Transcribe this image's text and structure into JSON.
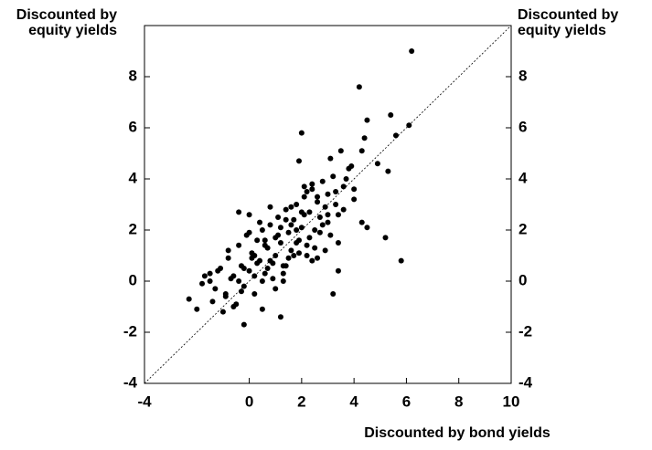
{
  "chart_data": {
    "type": "scatter",
    "ylabel": "Discounted by equity yields",
    "y2label": "Discounted by equity yields",
    "xlabel": "Discounted by bond yields",
    "color": "#000000",
    "xlim": [
      -4,
      10
    ],
    "xticks": [
      -4,
      0,
      2,
      4,
      6,
      8,
      10
    ],
    "ylim": [
      -4,
      10
    ],
    "yticks": [
      -4,
      -2,
      0,
      2,
      4,
      6,
      8
    ],
    "y2lim": [
      -4,
      10
    ],
    "y2ticks": [
      -4,
      -2,
      0,
      2,
      4,
      6,
      8
    ],
    "x": [
      6.2,
      4.2,
      5.4,
      5.6,
      6.1,
      4.5,
      4.9,
      5.3,
      5.8,
      5.2,
      4.5,
      4.3,
      2.0,
      1.9,
      -2.3,
      -2.0,
      -0.2,
      1.2,
      3.2,
      0.0,
      -0.4,
      4.4,
      3.5,
      -1.5,
      -1.3,
      -1.1,
      -0.9,
      -0.8,
      -0.6,
      -0.5,
      -0.4,
      -0.3,
      -0.2,
      -0.1,
      0.0,
      0.1,
      0.2,
      0.3,
      0.4,
      0.5,
      0.6,
      0.7,
      0.8,
      0.9,
      1.0,
      1.1,
      1.2,
      1.3,
      1.4,
      1.5,
      1.6,
      1.7,
      1.8,
      1.9,
      2.0,
      2.1,
      2.2,
      2.3,
      2.4,
      2.5,
      2.6,
      2.7,
      2.8,
      2.9,
      3.0,
      3.1,
      3.2,
      3.3,
      3.4,
      3.6,
      3.8,
      4.0,
      -1.7,
      -1.4,
      -1.0,
      -0.7,
      -0.3,
      0.1,
      0.4,
      0.7,
      1.0,
      1.3,
      1.6,
      1.9,
      2.2,
      2.5,
      2.8,
      3.1,
      3.4,
      3.7,
      4.0,
      4.3,
      -1.2,
      -0.8,
      -0.4,
      0.0,
      0.3,
      0.6,
      0.9,
      1.2,
      1.5,
      1.8,
      2.1,
      2.4,
      2.7,
      3.0,
      3.3,
      3.6,
      3.9,
      0.2,
      0.5,
      0.8,
      1.1,
      1.4,
      1.7,
      2.0,
      2.3,
      2.6,
      2.9,
      -0.6,
      -0.2,
      0.2,
      0.6,
      1.0,
      1.4,
      1.8,
      2.2,
      2.6,
      3.0,
      3.4,
      0.8,
      1.6,
      2.4,
      -1.8,
      -1.5,
      -0.9,
      0.5,
      1.3,
      2.1
    ],
    "values": [
      9.0,
      7.6,
      6.5,
      5.7,
      6.1,
      6.3,
      4.6,
      4.3,
      0.8,
      1.7,
      2.1,
      2.3,
      5.8,
      4.7,
      -0.7,
      -1.1,
      -1.7,
      -1.4,
      -0.5,
      2.6,
      2.7,
      5.6,
      5.1,
      0.0,
      -0.3,
      0.5,
      -0.6,
      0.9,
      0.2,
      -0.9,
      1.4,
      0.6,
      -0.2,
      1.8,
      0.4,
      1.1,
      -0.5,
      1.6,
      0.8,
      2.0,
      0.3,
      1.3,
      2.2,
      0.7,
      1.0,
      2.5,
      1.5,
      0.6,
      2.8,
      1.9,
      1.2,
      2.4,
      3.0,
      1.6,
      2.1,
      3.3,
      1.4,
      2.7,
      3.6,
      2.0,
      3.1,
      2.5,
      3.9,
      2.9,
      3.4,
      1.8,
      4.1,
      3.0,
      2.6,
      3.7,
      4.4,
      3.2,
      0.2,
      -0.8,
      -1.2,
      0.1,
      -0.4,
      0.9,
      2.3,
      0.5,
      1.7,
      0.3,
      2.9,
      1.1,
      3.5,
      1.3,
      2.2,
      4.8,
      1.5,
      4.0,
      3.6,
      5.1,
      0.4,
      1.2,
      0.0,
      1.9,
      0.7,
      1.4,
      0.1,
      2.1,
      0.9,
      1.5,
      2.6,
      0.8,
      1.9,
      2.3,
      3.5,
      2.8,
      4.5,
      1.0,
      0.0,
      0.8,
      1.8,
      2.4,
      1.0,
      2.7,
      1.7,
      3.3,
      1.2,
      -1.0,
      0.5,
      0.2,
      1.6,
      -0.3,
      0.6,
      2.0,
      1.0,
      0.9,
      2.6,
      0.4,
      2.9,
      2.2,
      3.8,
      -0.1,
      0.3,
      -0.5,
      -1.1,
      0.0,
      3.7
    ]
  }
}
